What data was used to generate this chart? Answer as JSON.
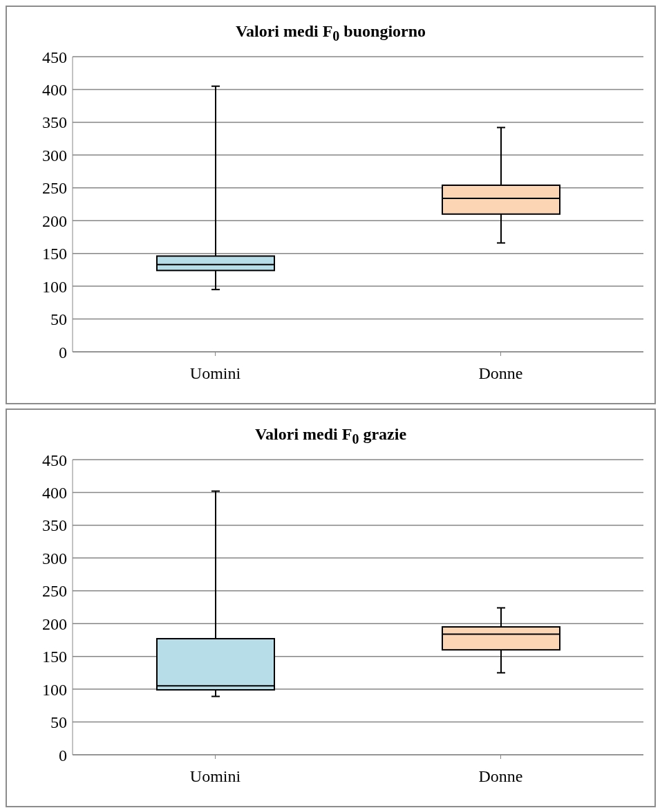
{
  "chart_data": [
    {
      "type": "box",
      "title": "Valori medi F$_{0}$ buongiorno",
      "categories": [
        "Uomini",
        "Donne"
      ],
      "colors": [
        "#b7dde8",
        "#fcd5b4"
      ],
      "boxes": [
        {
          "low": 95,
          "q1": 124,
          "median": 133,
          "q3": 146,
          "high": 405
        },
        {
          "low": 166,
          "q1": 210,
          "median": 234,
          "q3": 254,
          "high": 342
        }
      ],
      "ylim": [
        0,
        450
      ],
      "yticks": [
        0,
        50,
        100,
        150,
        200,
        250,
        300,
        350,
        400,
        450
      ],
      "grid": "y"
    },
    {
      "type": "box",
      "title": "Valori medi F$_{0}$ grazie",
      "categories": [
        "Uomini",
        "Donne"
      ],
      "colors": [
        "#b7dde8",
        "#fcd5b4"
      ],
      "boxes": [
        {
          "low": 89,
          "q1": 99,
          "median": 105,
          "q3": 177,
          "high": 402
        },
        {
          "low": 125,
          "q1": 160,
          "median": 184,
          "q3": 195,
          "high": 224
        }
      ],
      "ylim": [
        0,
        450
      ],
      "yticks": [
        0,
        50,
        100,
        150,
        200,
        250,
        300,
        350,
        400,
        450
      ],
      "grid": "y"
    }
  ]
}
